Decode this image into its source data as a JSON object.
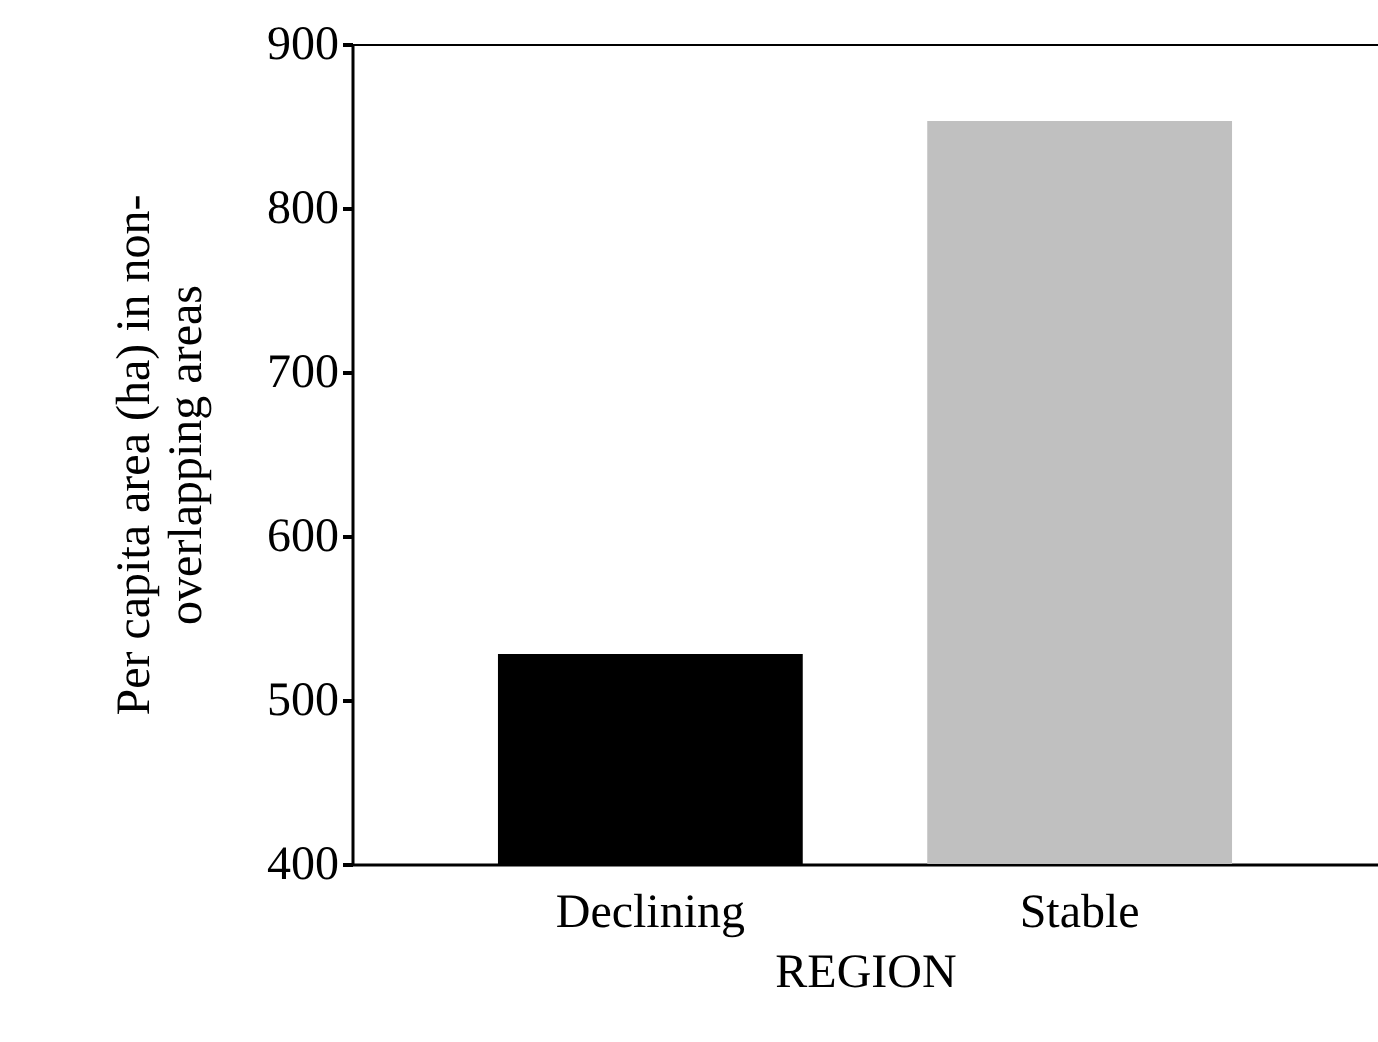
{
  "chart_data": {
    "type": "bar",
    "xlabel": "REGION",
    "ylabel": "Per capita area (ha) in non-overlapping areas",
    "categories": [
      "Declining",
      "Stable"
    ],
    "values": [
      528,
      853
    ],
    "colors": [
      "#000000",
      "#c0c0c0"
    ],
    "ylim": [
      400,
      900
    ],
    "yticks": [
      400,
      500,
      600,
      700,
      800,
      900
    ],
    "grid": false
  }
}
